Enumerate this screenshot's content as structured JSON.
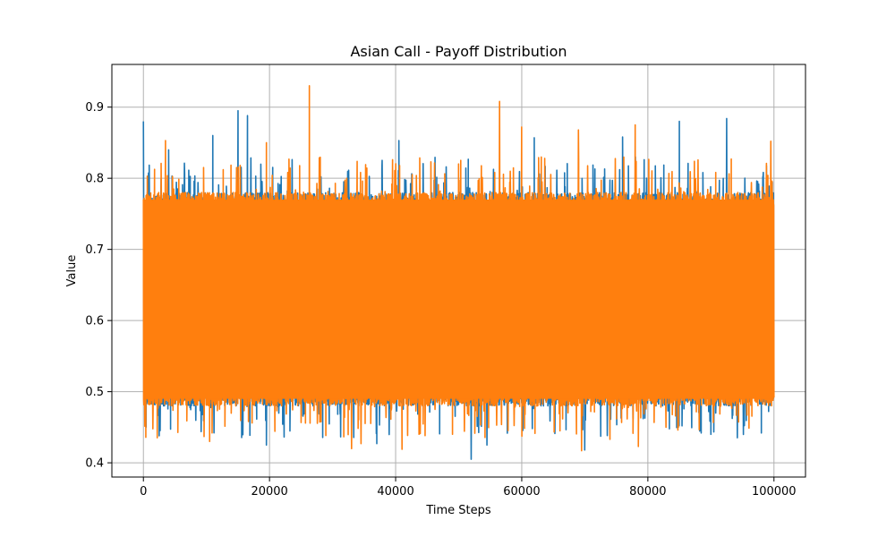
{
  "chart_data": {
    "type": "line",
    "title": "Asian Call - Payoff Distribution",
    "xlabel": "Time Steps",
    "ylabel": "Value",
    "xlim": [
      -5000,
      105000
    ],
    "ylim": [
      0.38,
      0.96
    ],
    "xticks": [
      0,
      20000,
      40000,
      60000,
      80000,
      100000
    ],
    "yticks": [
      0.4,
      0.5,
      0.6,
      0.7,
      0.8,
      0.9
    ],
    "x_range": [
      0,
      100000
    ],
    "grid": true,
    "legend": "none",
    "series": [
      {
        "color": "#1f77b4",
        "band": [
          0.48,
          0.78
        ],
        "upper_spikes": [
          [
            0,
            0.88
          ],
          [
            15000,
            0.895
          ],
          [
            16500,
            0.888
          ],
          [
            11000,
            0.86
          ],
          [
            92500,
            0.884
          ],
          [
            85000,
            0.88
          ],
          [
            40500,
            0.853
          ],
          [
            76000,
            0.858
          ],
          [
            62000,
            0.857
          ],
          [
            4000,
            0.84
          ]
        ],
        "lower_spikes": [
          [
            52000,
            0.405
          ],
          [
            54500,
            0.425
          ],
          [
            19500,
            0.425
          ],
          [
            70000,
            0.418
          ],
          [
            37000,
            0.427
          ],
          [
            2500,
            0.438
          ],
          [
            90000,
            0.44
          ]
        ]
      },
      {
        "color": "#ff7f0e",
        "band": [
          0.48,
          0.78
        ],
        "upper_spikes": [
          [
            26300,
            0.93
          ],
          [
            56500,
            0.908
          ],
          [
            60000,
            0.872
          ],
          [
            78000,
            0.875
          ],
          [
            69000,
            0.868
          ],
          [
            3500,
            0.853
          ],
          [
            99500,
            0.852
          ],
          [
            19500,
            0.85
          ]
        ],
        "lower_spikes": [
          [
            41000,
            0.419
          ],
          [
            33000,
            0.42
          ],
          [
            69500,
            0.417
          ],
          [
            10500,
            0.43
          ],
          [
            78500,
            0.423
          ],
          [
            74000,
            0.433
          ],
          [
            34500,
            0.427
          ]
        ]
      }
    ]
  }
}
